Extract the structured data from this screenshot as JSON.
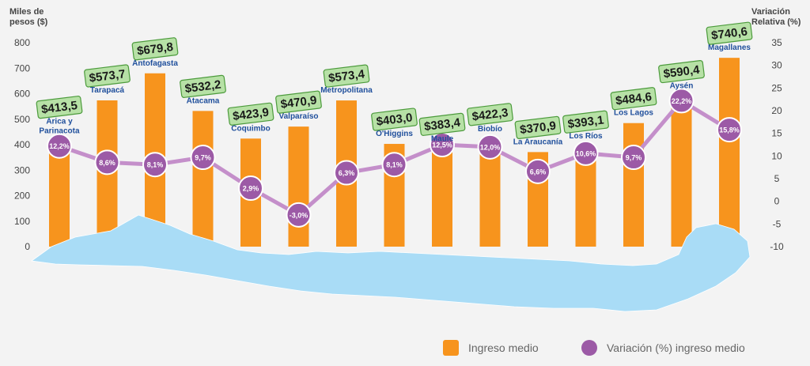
{
  "chart_data": {
    "type": "bar+line",
    "categories": [
      "Arica y Parinacota",
      "Tarapacá",
      "Antofagasta",
      "Atacama",
      "Coquimbo",
      "Valparaíso",
      "Metropolitana",
      "O'Higgins",
      "Maule",
      "Biobío",
      "La Araucanía",
      "Los Ríos",
      "Los Lagos",
      "Aysén",
      "Magallanes"
    ],
    "bar_labels": [
      "$413,5",
      "$573,7",
      "$679,8",
      "$532,2",
      "$423,9",
      "$470,9",
      "$573,4",
      "$403,0",
      "$383,4",
      "$422,3",
      "$370,9",
      "$393,1",
      "$484,6",
      "$590,4",
      "$740,6"
    ],
    "series": [
      {
        "name": "Ingreso medio",
        "axis": "left",
        "values": [
          413.5,
          573.7,
          679.8,
          532.2,
          423.9,
          470.9,
          573.4,
          403.0,
          383.4,
          422.3,
          370.9,
          393.1,
          484.6,
          590.4,
          740.6
        ]
      },
      {
        "name": "Variación (%) ingreso medio",
        "axis": "right",
        "values": [
          12.2,
          8.6,
          8.1,
          9.7,
          2.9,
          -3.0,
          6.3,
          8.1,
          12.5,
          12.0,
          6.6,
          10.6,
          9.7,
          22.2,
          15.8
        ]
      }
    ],
    "line_labels": [
      "12,2%",
      "8,6%",
      "8,1%",
      "9,7%",
      "2,9%",
      "-3,0%",
      "6,3%",
      "8,1%",
      "12,5%",
      "12,0%",
      "6,6%",
      "10,6%",
      "9,7%",
      "22,2%",
      "15,8%"
    ],
    "ylabel_left": [
      "Miles de",
      "pesos ($)"
    ],
    "ylabel_right": [
      "Variación",
      "Relativa (%)"
    ],
    "yticks_left": [
      "800",
      "700",
      "600",
      "500",
      "400",
      "300",
      "200",
      "100",
      "0"
    ],
    "yticks_right": [
      "35",
      "30",
      "25",
      "20",
      "15",
      "10",
      "5",
      "0",
      "-5",
      "-10"
    ],
    "ylim_left": [
      0,
      800
    ],
    "ylim_right": [
      -10,
      35
    ],
    "colors": {
      "bar": "#f7941d",
      "line": "#c48fca",
      "marker": "#9c5aa6",
      "map": "#a9dcf6",
      "label": "#1f4f9c"
    }
  },
  "legend": {
    "bar_label": "Ingreso medio",
    "line_label": "Variación (%) ingreso medio"
  }
}
